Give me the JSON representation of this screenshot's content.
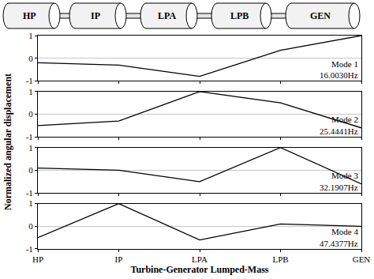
{
  "x_label": "Turbine-Generator Lumped-Mass",
  "y_label": "Normalized angular displacement",
  "chart_data": [
    {
      "type": "line",
      "categories": [
        "HP",
        "IP",
        "LPA",
        "LPB",
        "GEN"
      ],
      "values": [
        -0.2,
        -0.3,
        -0.8,
        0.35,
        1.0
      ],
      "color": "#000000",
      "ylim": [
        -1,
        1
      ],
      "yticks": [
        -1,
        0,
        1
      ],
      "grid": true,
      "tick_labels": "y",
      "annotations": [
        "Mode 1",
        "16.0030Hz"
      ]
    },
    {
      "type": "line",
      "categories": [
        "HP",
        "IP",
        "LPA",
        "LPB",
        "GEN"
      ],
      "values": [
        -0.5,
        -0.3,
        1.0,
        0.5,
        -0.6
      ],
      "color": "#000000",
      "ylim": [
        -1,
        1
      ],
      "yticks": [
        -1,
        0,
        1
      ],
      "grid": true,
      "tick_labels": "y",
      "annotations": [
        "Mode 2",
        "25.4441Hz"
      ]
    },
    {
      "type": "line",
      "categories": [
        "HP",
        "IP",
        "LPA",
        "LPB",
        "GEN"
      ],
      "values": [
        0.1,
        0.0,
        -0.5,
        1.0,
        -0.6
      ],
      "color": "#000000",
      "ylim": [
        -1,
        1
      ],
      "yticks": [
        -1,
        0,
        1
      ],
      "grid": true,
      "tick_labels": "y",
      "annotations": [
        "Mode 3",
        "32.1907Hz"
      ]
    },
    {
      "type": "line",
      "categories": [
        "HP",
        "IP",
        "LPA",
        "LPB",
        "GEN"
      ],
      "values": [
        -0.5,
        1.0,
        -0.6,
        0.1,
        0.0
      ],
      "color": "#000000",
      "ylim": [
        -1,
        1
      ],
      "yticks": [
        -1,
        0,
        1
      ],
      "grid": true,
      "annotations": [
        "Mode 4",
        "47.4377Hz"
      ]
    }
  ]
}
